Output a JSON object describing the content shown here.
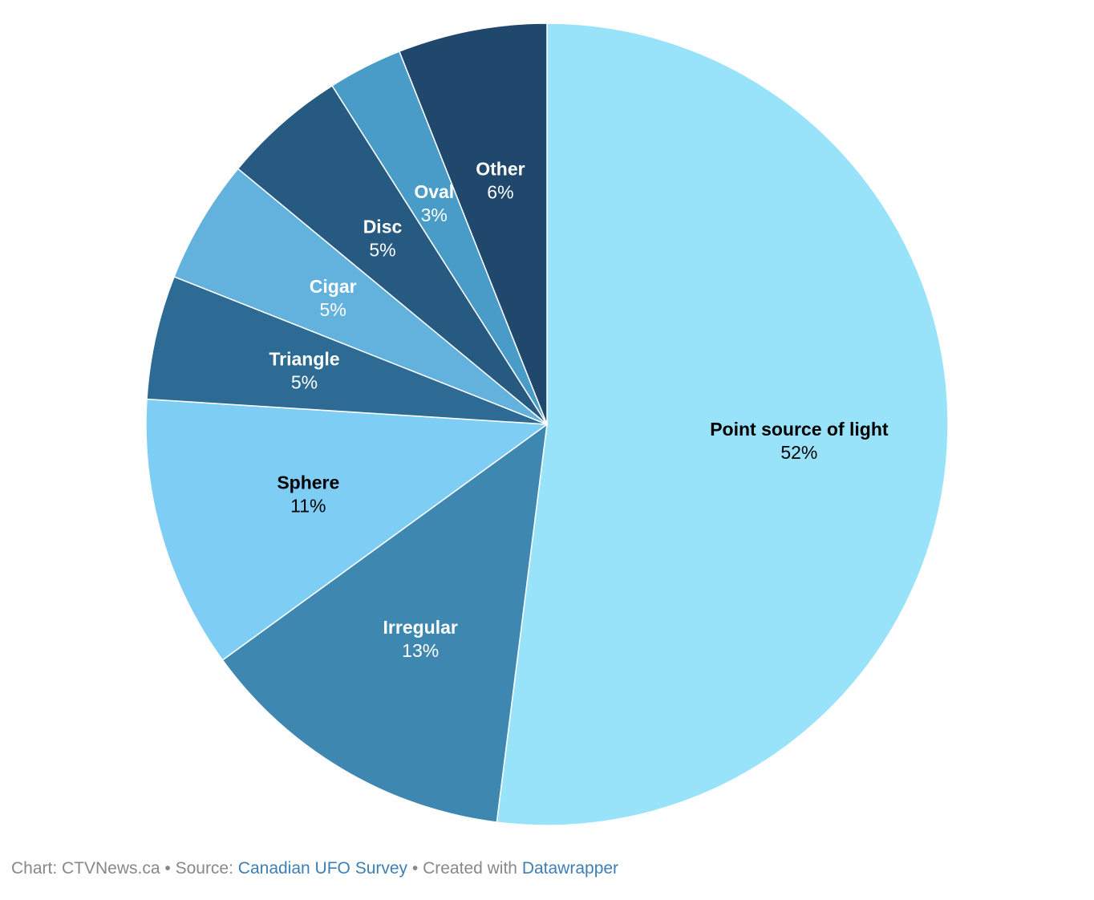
{
  "chart_data": {
    "type": "pie",
    "start_angle_deg": 0,
    "direction": "clockwise",
    "slices": [
      {
        "label": "Point source of light",
        "value": 52,
        "value_label": "52%",
        "color": "#98e3fa",
        "text_color": "#000000"
      },
      {
        "label": "Irregular",
        "value": 13,
        "value_label": "13%",
        "color": "#3e87b0",
        "text_color": "#ffffff"
      },
      {
        "label": "Sphere",
        "value": 11,
        "value_label": "11%",
        "color": "#7ecdf5",
        "text_color": "#000000"
      },
      {
        "label": "Triangle",
        "value": 5,
        "value_label": "5%",
        "color": "#2d6a94",
        "text_color": "#ffffff"
      },
      {
        "label": "Cigar",
        "value": 5,
        "value_label": "5%",
        "color": "#63b2dd",
        "text_color": "#ffffff"
      },
      {
        "label": "Disc",
        "value": 5,
        "value_label": "5%",
        "color": "#275a80",
        "text_color": "#ffffff"
      },
      {
        "label": "Oval",
        "value": 3,
        "value_label": "3%",
        "color": "#4a9cc8",
        "text_color": "#ffffff"
      },
      {
        "label": "Other",
        "value": 6,
        "value_label": "6%",
        "color": "#1f486c",
        "text_color": "#ffffff"
      }
    ]
  },
  "footer": {
    "chart_prefix": "Chart: CTVNews.ca",
    "separator": " • ",
    "source_prefix": "Source: ",
    "source_link": "Canadian UFO Survey",
    "created_prefix": "Created with ",
    "created_link": "Datawrapper"
  }
}
